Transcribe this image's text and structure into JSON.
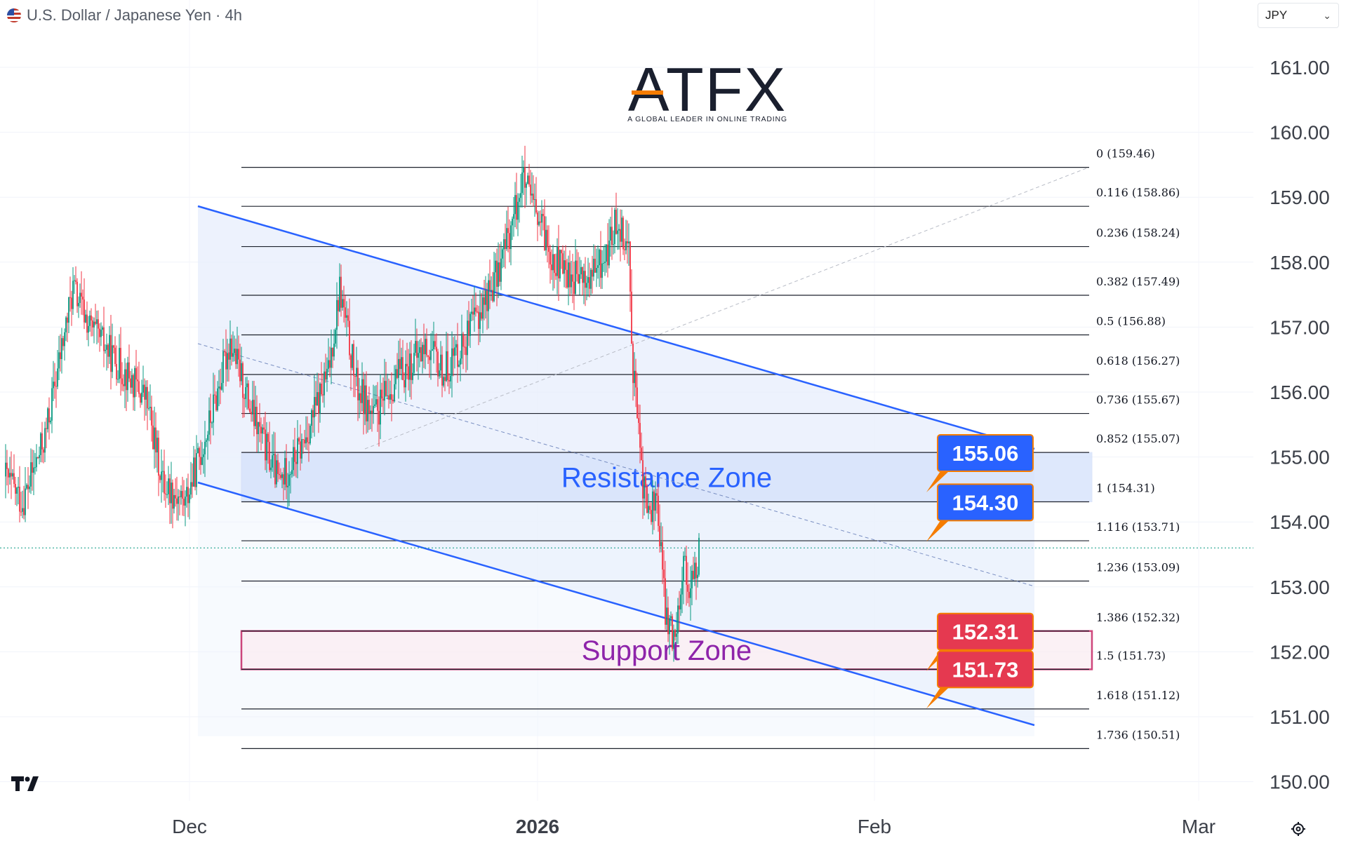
{
  "header": {
    "title": "U.S. Dollar / Japanese Yen · 4h",
    "flag_icon": "us-jp-flag-icon",
    "currency_select": "JPY",
    "chevron_icon": "chevron-down-icon"
  },
  "logo": {
    "wordmark": "ATFX",
    "tagline": "A GLOBAL LEADER IN ONLINE TRADING"
  },
  "colors": {
    "up": "#089981",
    "down": "#f23645",
    "channel": "#2962ff",
    "resistance_text": "#2962ff",
    "support_text": "#8e24aa",
    "support_border": "#c2185b",
    "label_blue": "#2962ff",
    "label_red": "#e53950",
    "label_border": "#f57c00"
  },
  "chart_data": {
    "type": "candlestick",
    "y_axis": {
      "ticks": [
        161,
        160,
        159,
        158,
        157,
        156,
        155,
        154,
        153,
        152,
        151,
        150
      ],
      "ylim": [
        149.65,
        161.75
      ],
      "position": "right"
    },
    "x_axis": {
      "ticks": [
        "Dec",
        "2026",
        "Feb",
        "Mar"
      ]
    },
    "fibonacci": [
      {
        "level": "0",
        "price": 159.46
      },
      {
        "level": "0.116",
        "price": 158.86
      },
      {
        "level": "0.236",
        "price": 158.24
      },
      {
        "level": "0.382",
        "price": 157.49
      },
      {
        "level": "0.5",
        "price": 156.88
      },
      {
        "level": "0.618",
        "price": 156.27
      },
      {
        "level": "0.736",
        "price": 155.67
      },
      {
        "level": "0.852",
        "price": 155.07
      },
      {
        "level": "1",
        "price": 154.31
      },
      {
        "level": "1.116",
        "price": 153.71
      },
      {
        "level": "1.236",
        "price": 153.09
      },
      {
        "level": "1.386",
        "price": 152.32
      },
      {
        "level": "1.5",
        "price": 151.73
      },
      {
        "level": "1.618",
        "price": 151.12
      },
      {
        "level": "1.736",
        "price": 150.51
      }
    ],
    "zones": [
      {
        "name": "Resistance Zone",
        "from": 154.31,
        "to": 155.07
      },
      {
        "name": "Support Zone",
        "from": 151.73,
        "to": 152.32
      }
    ],
    "price_labels": [
      {
        "value": "155.06",
        "price": 155.06,
        "color": "blue"
      },
      {
        "value": "154.30",
        "price": 154.3,
        "color": "blue"
      },
      {
        "value": "152.31",
        "price": 152.31,
        "color": "red"
      },
      {
        "value": "151.73",
        "price": 151.73,
        "color": "red"
      }
    ],
    "current_price": 153.6,
    "anchors": [
      {
        "t": 0,
        "p": 154.7
      },
      {
        "t": 12,
        "p": 154.3
      },
      {
        "t": 28,
        "p": 155.3
      },
      {
        "t": 48,
        "p": 157.6
      },
      {
        "t": 60,
        "p": 157.0
      },
      {
        "t": 85,
        "p": 156.3
      },
      {
        "t": 100,
        "p": 155.9
      },
      {
        "t": 112,
        "p": 154.6
      },
      {
        "t": 128,
        "p": 154.3
      },
      {
        "t": 145,
        "p": 155.5
      },
      {
        "t": 160,
        "p": 156.8
      },
      {
        "t": 175,
        "p": 155.7
      },
      {
        "t": 195,
        "p": 154.6
      },
      {
        "t": 212,
        "p": 155.2
      },
      {
        "t": 230,
        "p": 156.3
      },
      {
        "t": 238,
        "p": 157.6
      },
      {
        "t": 250,
        "p": 156.1
      },
      {
        "t": 262,
        "p": 155.6
      },
      {
        "t": 278,
        "p": 156.2
      },
      {
        "t": 300,
        "p": 156.7
      },
      {
        "t": 312,
        "p": 156.3
      },
      {
        "t": 330,
        "p": 156.9
      },
      {
        "t": 350,
        "p": 157.8
      },
      {
        "t": 362,
        "p": 158.7
      },
      {
        "t": 368,
        "p": 159.3
      },
      {
        "t": 380,
        "p": 158.6
      },
      {
        "t": 392,
        "p": 158.0
      },
      {
        "t": 402,
        "p": 157.8
      },
      {
        "t": 415,
        "p": 157.7
      },
      {
        "t": 428,
        "p": 158.1
      },
      {
        "t": 436,
        "p": 158.7
      },
      {
        "t": 444,
        "p": 158.2
      },
      {
        "t": 447,
        "p": 156.4
      },
      {
        "t": 450,
        "p": 155.7
      },
      {
        "t": 452,
        "p": 154.9
      },
      {
        "t": 458,
        "p": 154.1
      },
      {
        "t": 464,
        "p": 154.4
      },
      {
        "t": 470,
        "p": 152.6
      },
      {
        "t": 476,
        "p": 152.2
      },
      {
        "t": 483,
        "p": 153.4
      },
      {
        "t": 488,
        "p": 152.9
      },
      {
        "t": 494,
        "p": 153.5
      }
    ]
  }
}
